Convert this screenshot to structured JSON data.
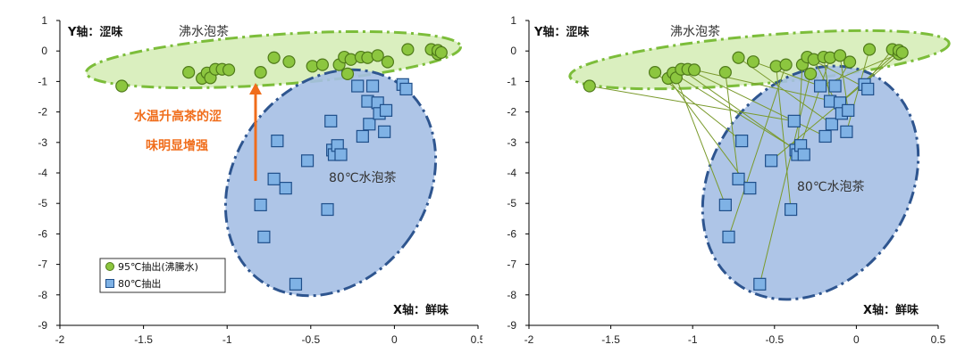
{
  "colors": {
    "green_fill": "#8cc63f",
    "green_stroke": "#4f7a1a",
    "blue_fill": "#7fb2e5",
    "blue_stroke": "#1f4f8a",
    "green_ellipse_fill": "#d4ecb4",
    "green_ellipse_stroke": "#7cbd3a",
    "blue_ellipse_fill": "#a5bfe4",
    "blue_ellipse_stroke": "#2e558f",
    "orange": "#f06d1b",
    "link_line": "#7a9a2c"
  },
  "chart_data": [
    {
      "type": "scatter",
      "panel": "left",
      "title": "",
      "ylabel": "Y轴：涩味",
      "xlabel": "X轴：鲜味",
      "xlim": [
        -2,
        0.5
      ],
      "ylim": [
        -9,
        1
      ],
      "xticks": [
        "-2",
        "-1.5",
        "-1",
        "-0.5",
        "0",
        "0.5"
      ],
      "yticks": [
        "1",
        "0",
        "-1",
        "-2",
        "-3",
        "-4",
        "-5",
        "-6",
        "-7",
        "-8",
        "-9"
      ],
      "annotations": {
        "boiling": "沸水泡茶",
        "eighty": "80℃水泡茶",
        "note_line1": "水温升高茶的涩",
        "note_line2": "味明显增强"
      },
      "legend": [
        "95℃抽出(沸騰水)",
        "80℃抽出"
      ],
      "series": [
        {
          "name": "95℃抽出(沸騰水)",
          "marker": "circle",
          "points": [
            [
              -1.63,
              -1.15
            ],
            [
              -1.23,
              -0.7
            ],
            [
              -1.15,
              -0.9
            ],
            [
              -1.12,
              -0.72
            ],
            [
              -1.1,
              -0.88
            ],
            [
              -1.07,
              -0.6
            ],
            [
              -1.03,
              -0.6
            ],
            [
              -0.99,
              -0.62
            ],
            [
              -0.8,
              -0.7
            ],
            [
              -0.72,
              -0.22
            ],
            [
              -0.63,
              -0.35
            ],
            [
              -0.49,
              -0.5
            ],
            [
              -0.43,
              -0.45
            ],
            [
              -0.33,
              -0.45
            ],
            [
              -0.3,
              -0.2
            ],
            [
              -0.28,
              -0.75
            ],
            [
              -0.26,
              -0.28
            ],
            [
              -0.2,
              -0.2
            ],
            [
              -0.16,
              -0.22
            ],
            [
              -0.1,
              -0.15
            ],
            [
              -0.04,
              -0.36
            ],
            [
              0.08,
              0.05
            ],
            [
              0.22,
              0.05
            ],
            [
              0.26,
              -0.1
            ],
            [
              0.26,
              0.02
            ],
            [
              0.28,
              -0.05
            ]
          ]
        },
        {
          "name": "80℃抽出",
          "marker": "square",
          "points": [
            [
              -0.8,
              -5.05
            ],
            [
              -0.78,
              -6.1
            ],
            [
              -0.72,
              -4.2
            ],
            [
              -0.7,
              -2.95
            ],
            [
              -0.65,
              -4.5
            ],
            [
              -0.59,
              -7.65
            ],
            [
              -0.52,
              -3.6
            ],
            [
              -0.4,
              -5.2
            ],
            [
              -0.38,
              -2.3
            ],
            [
              -0.37,
              -3.25
            ],
            [
              -0.36,
              -3.4
            ],
            [
              -0.34,
              -3.1
            ],
            [
              -0.32,
              -3.4
            ],
            [
              -0.22,
              -1.15
            ],
            [
              -0.19,
              -2.8
            ],
            [
              -0.16,
              -1.65
            ],
            [
              -0.15,
              -2.4
            ],
            [
              -0.13,
              -1.15
            ],
            [
              -0.1,
              -1.7
            ],
            [
              -0.09,
              -2.05
            ],
            [
              -0.06,
              -2.65
            ],
            [
              -0.05,
              -1.95
            ],
            [
              0.05,
              -1.1
            ],
            [
              0.07,
              -1.25
            ]
          ]
        }
      ]
    },
    {
      "type": "scatter",
      "panel": "right",
      "title": "",
      "ylabel": "Y轴：涩味",
      "xlabel": "X轴：鲜味",
      "xlim": [
        -2,
        0.5
      ],
      "ylim": [
        -9,
        1
      ],
      "xticks": [
        "-2",
        "-1.5",
        "-1",
        "-0.5",
        "0",
        "0.5"
      ],
      "yticks": [
        "1",
        "0",
        "-1",
        "-2",
        "-3",
        "-4",
        "-5",
        "-6",
        "-7",
        "-8",
        "-9"
      ],
      "annotations": {
        "boiling": "沸水泡茶",
        "eighty": "80℃水泡茶"
      },
      "series": [
        {
          "name": "95℃抽出(沸騰水)",
          "marker": "circle",
          "points": [
            [
              -1.63,
              -1.15
            ],
            [
              -1.23,
              -0.7
            ],
            [
              -1.15,
              -0.9
            ],
            [
              -1.12,
              -0.72
            ],
            [
              -1.1,
              -0.88
            ],
            [
              -1.07,
              -0.6
            ],
            [
              -1.03,
              -0.6
            ],
            [
              -0.99,
              -0.62
            ],
            [
              -0.8,
              -0.7
            ],
            [
              -0.72,
              -0.22
            ],
            [
              -0.63,
              -0.35
            ],
            [
              -0.49,
              -0.5
            ],
            [
              -0.43,
              -0.45
            ],
            [
              -0.33,
              -0.45
            ],
            [
              -0.3,
              -0.2
            ],
            [
              -0.28,
              -0.75
            ],
            [
              -0.26,
              -0.28
            ],
            [
              -0.2,
              -0.2
            ],
            [
              -0.16,
              -0.22
            ],
            [
              -0.1,
              -0.15
            ],
            [
              -0.04,
              -0.36
            ],
            [
              0.08,
              0.05
            ],
            [
              0.22,
              0.05
            ],
            [
              0.26,
              -0.1
            ],
            [
              0.26,
              0.02
            ],
            [
              0.28,
              -0.05
            ]
          ]
        },
        {
          "name": "80℃抽出",
          "marker": "square",
          "points": [
            [
              -0.8,
              -5.05
            ],
            [
              -0.78,
              -6.1
            ],
            [
              -0.72,
              -4.2
            ],
            [
              -0.7,
              -2.95
            ],
            [
              -0.65,
              -4.5
            ],
            [
              -0.59,
              -7.65
            ],
            [
              -0.52,
              -3.6
            ],
            [
              -0.4,
              -5.2
            ],
            [
              -0.38,
              -2.3
            ],
            [
              -0.37,
              -3.25
            ],
            [
              -0.36,
              -3.4
            ],
            [
              -0.34,
              -3.1
            ],
            [
              -0.32,
              -3.4
            ],
            [
              -0.22,
              -1.15
            ],
            [
              -0.19,
              -2.8
            ],
            [
              -0.16,
              -1.65
            ],
            [
              -0.15,
              -2.4
            ],
            [
              -0.13,
              -1.15
            ],
            [
              -0.1,
              -1.7
            ],
            [
              -0.09,
              -2.05
            ],
            [
              -0.06,
              -2.65
            ],
            [
              -0.05,
              -1.95
            ],
            [
              0.05,
              -1.1
            ],
            [
              0.07,
              -1.25
            ]
          ]
        }
      ],
      "links": [
        [
          0,
          8
        ],
        [
          1,
          3
        ],
        [
          2,
          4
        ],
        [
          3,
          12
        ],
        [
          4,
          0
        ],
        [
          5,
          9
        ],
        [
          6,
          14
        ],
        [
          7,
          18
        ],
        [
          8,
          2
        ],
        [
          9,
          16
        ],
        [
          10,
          13
        ],
        [
          11,
          7
        ],
        [
          12,
          1
        ],
        [
          13,
          10
        ],
        [
          14,
          23
        ],
        [
          15,
          5
        ],
        [
          16,
          19
        ],
        [
          17,
          15
        ],
        [
          18,
          11
        ],
        [
          19,
          21
        ],
        [
          20,
          17
        ],
        [
          21,
          20
        ],
        [
          22,
          22
        ],
        [
          23,
          6
        ],
        [
          24,
          18
        ],
        [
          25,
          13
        ]
      ]
    }
  ]
}
